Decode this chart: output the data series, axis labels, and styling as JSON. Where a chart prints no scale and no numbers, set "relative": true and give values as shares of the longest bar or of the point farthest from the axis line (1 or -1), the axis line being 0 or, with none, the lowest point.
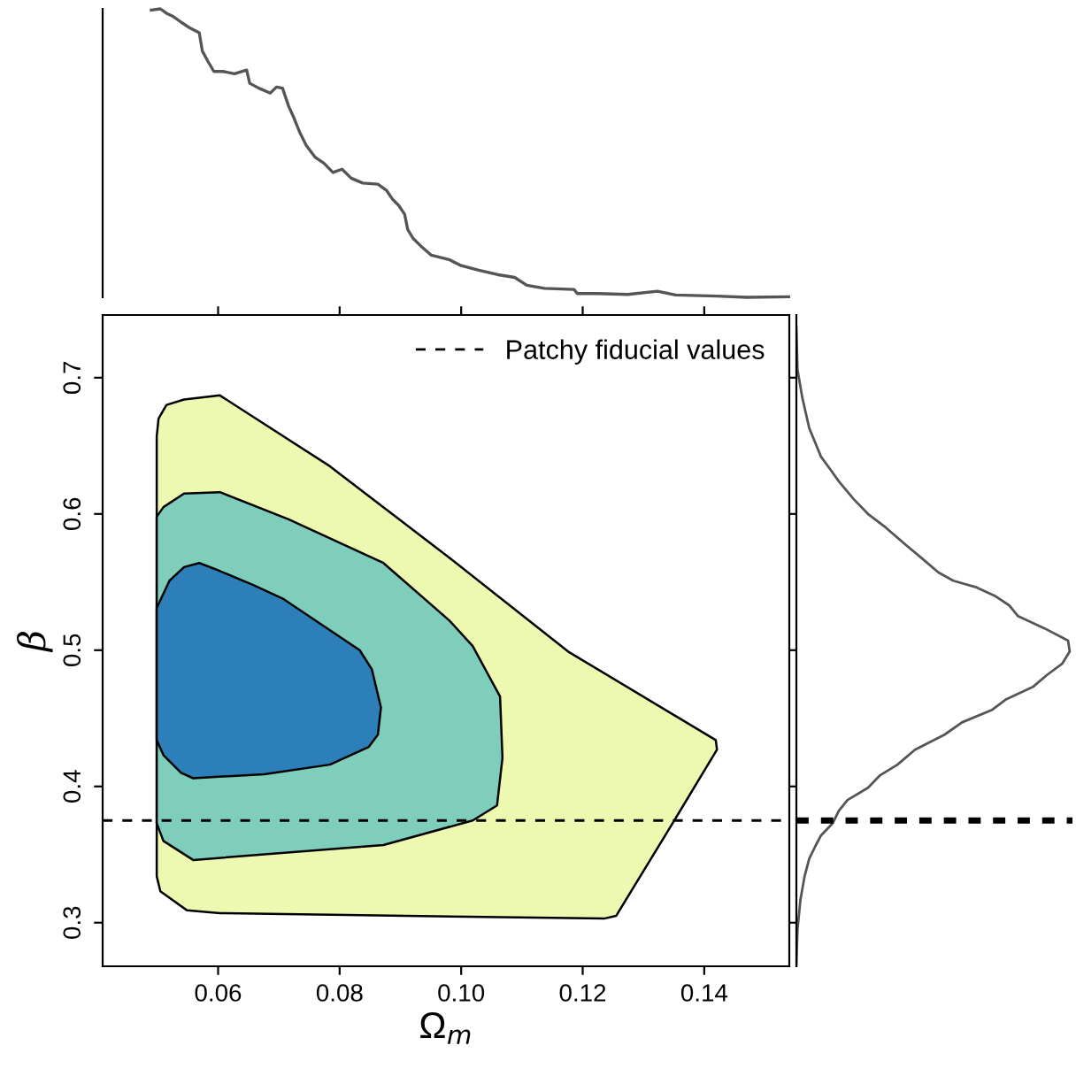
{
  "chart_data": [
    {
      "type": "line",
      "relative": true,
      "tick_labels": false,
      "xlim": [
        0.041,
        0.154
      ],
      "xticks": [
        0.06,
        0.08,
        0.1,
        0.12,
        0.14
      ],
      "series": [
        {
          "color": "#555555",
          "x": [
            0.049,
            0.0505,
            0.0515,
            0.0525,
            0.0539,
            0.0554,
            0.0569,
            0.0574,
            0.0583,
            0.0593,
            0.0608,
            0.0627,
            0.0647,
            0.0652,
            0.0667,
            0.0686,
            0.0696,
            0.0706,
            0.0716,
            0.0725,
            0.0735,
            0.0745,
            0.076,
            0.0774,
            0.0789,
            0.0804,
            0.0819,
            0.0838,
            0.0863,
            0.0877,
            0.0887,
            0.0897,
            0.0907,
            0.0912,
            0.0921,
            0.0936,
            0.0951,
            0.098,
            0.1,
            0.1029,
            0.1059,
            0.1088,
            0.1108,
            0.1137,
            0.1186,
            0.1191,
            0.1225,
            0.1274,
            0.1323,
            0.1353,
            0.1421,
            0.147,
            0.1539
          ],
          "values": [
            0.996,
            1.0,
            0.985,
            0.975,
            0.954,
            0.933,
            0.917,
            0.854,
            0.819,
            0.783,
            0.783,
            0.775,
            0.788,
            0.742,
            0.725,
            0.708,
            0.729,
            0.725,
            0.663,
            0.621,
            0.569,
            0.527,
            0.485,
            0.465,
            0.433,
            0.444,
            0.413,
            0.396,
            0.392,
            0.371,
            0.34,
            0.319,
            0.288,
            0.235,
            0.204,
            0.173,
            0.146,
            0.131,
            0.11,
            0.094,
            0.079,
            0.069,
            0.042,
            0.031,
            0.027,
            0.013,
            0.013,
            0.01,
            0.021,
            0.008,
            0.004,
            0.0,
            0.002
          ]
        }
      ]
    },
    {
      "type": "area",
      "xlabel": "Ω$_{m}$",
      "ylabel": "β",
      "xlim": [
        0.041,
        0.154
      ],
      "ylim": [
        0.268,
        0.746
      ],
      "xticks": [
        0.06,
        0.08,
        {
          "value": 0.1,
          "label": "0.10"
        },
        0.12,
        0.14
      ],
      "yticks": [
        0.3,
        0.4,
        0.5,
        0.6,
        0.7
      ],
      "grid": false,
      "legend": "top right",
      "ref_lines": [
        {
          "axis": "y",
          "value": 0.375,
          "label": "Patchy fiducial values",
          "line_style": "dashed",
          "color": "#000000"
        }
      ],
      "series": [
        {
          "color": "#edf8b1",
          "x": [
            0.0499,
            0.0502,
            0.0515,
            0.0544,
            0.0603,
            0.0784,
            0.098,
            0.1176,
            0.1419,
            0.1421,
            0.1348,
            0.1255,
            0.1235,
            0.0603,
            0.0549,
            0.0505,
            0.0499
          ],
          "values": [
            0.657,
            0.67,
            0.68,
            0.684,
            0.687,
            0.635,
            0.568,
            0.499,
            0.434,
            0.427,
            0.373,
            0.305,
            0.303,
            0.307,
            0.309,
            0.323,
            0.334
          ]
        },
        {
          "color": "#7fcdbb",
          "x": [
            0.0499,
            0.051,
            0.0544,
            0.0603,
            0.0716,
            0.0872,
            0.098,
            0.1019,
            0.1064,
            0.1068,
            0.1059,
            0.1019,
            0.0872,
            0.0559,
            0.051,
            0.0499
          ],
          "values": [
            0.598,
            0.605,
            0.615,
            0.616,
            0.596,
            0.564,
            0.522,
            0.503,
            0.466,
            0.421,
            0.386,
            0.375,
            0.357,
            0.346,
            0.36,
            0.373
          ]
        },
        {
          "color": "#2c7fb8",
          "x": [
            0.0499,
            0.052,
            0.0544,
            0.0569,
            0.0598,
            0.0657,
            0.0706,
            0.0833,
            0.0853,
            0.0868,
            0.0863,
            0.0848,
            0.0784,
            0.0676,
            0.0559,
            0.0539,
            0.051,
            0.0499
          ],
          "values": [
            0.531,
            0.551,
            0.561,
            0.564,
            0.559,
            0.548,
            0.538,
            0.5,
            0.486,
            0.458,
            0.438,
            0.429,
            0.416,
            0.409,
            0.406,
            0.41,
            0.423,
            0.434
          ]
        }
      ]
    },
    {
      "type": "line",
      "relative": true,
      "orientation": "horizontal",
      "ylim": [
        0.268,
        0.746
      ],
      "yticks": [
        0.3,
        0.4,
        0.5,
        0.6,
        0.7
      ],
      "tick_labels": false,
      "color": "#555555",
      "ref_lines": [
        {
          "axis": "y",
          "value": 0.375,
          "line_style": "dotted",
          "color": "#000000"
        }
      ],
      "x": [
        0.737,
        0.706,
        0.685,
        0.663,
        0.642,
        0.633,
        0.624,
        0.611,
        0.6,
        0.59,
        0.577,
        0.568,
        0.557,
        0.551,
        0.546,
        0.54,
        0.533,
        0.525,
        0.516,
        0.507,
        0.499,
        0.49,
        0.482,
        0.473,
        0.464,
        0.456,
        0.447,
        0.438,
        0.427,
        0.416,
        0.408,
        0.399,
        0.39,
        0.382,
        0.373,
        0.364,
        0.356,
        0.347,
        0.334,
        0.317,
        0.295,
        0.269
      ],
      "values": [
        0.0,
        0.004,
        0.022,
        0.047,
        0.09,
        0.123,
        0.155,
        0.209,
        0.262,
        0.327,
        0.402,
        0.456,
        0.52,
        0.574,
        0.66,
        0.725,
        0.778,
        0.811,
        0.908,
        0.994,
        1.0,
        0.972,
        0.918,
        0.865,
        0.768,
        0.714,
        0.606,
        0.542,
        0.434,
        0.37,
        0.305,
        0.262,
        0.187,
        0.155,
        0.133,
        0.09,
        0.069,
        0.047,
        0.03,
        0.015,
        0.004,
        0.0
      ]
    }
  ]
}
